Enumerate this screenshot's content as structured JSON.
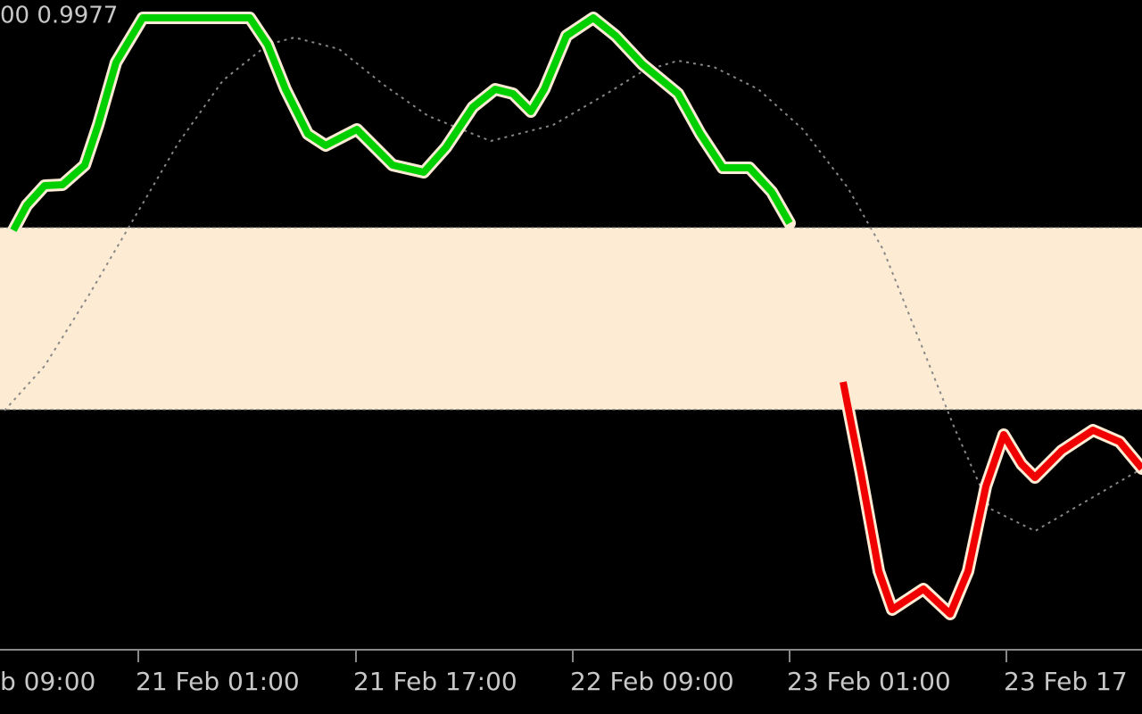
{
  "header_text": "00 0.9977",
  "x_axis": {
    "labels": [
      "b 09:00",
      "21 Feb 01:00",
      "21 Feb 17:00",
      "22 Feb 09:00",
      "23 Feb 01:00",
      "23 Feb 17"
    ]
  }
}
